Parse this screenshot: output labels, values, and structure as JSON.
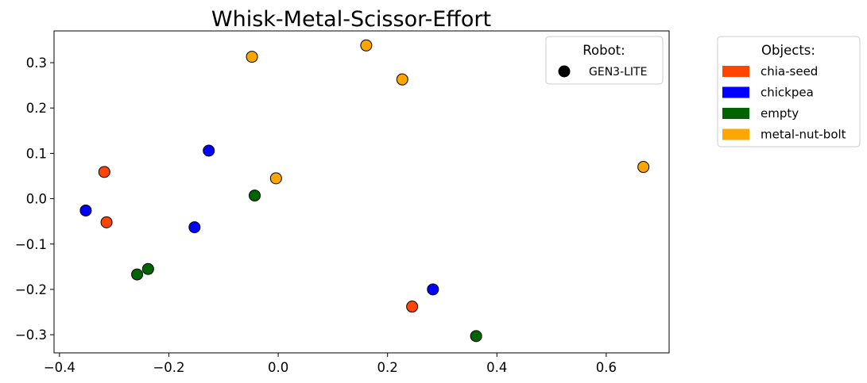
{
  "chart_data": {
    "type": "scatter",
    "title": "Whisk-Metal-Scissor-Effort",
    "xlabel": "",
    "ylabel": "",
    "xlim": [
      -0.41,
      0.715
    ],
    "ylim": [
      -0.34,
      0.37
    ],
    "x_ticks": [
      -0.4,
      -0.2,
      0.0,
      0.2,
      0.4,
      0.6
    ],
    "x_tick_labels": [
      "−0.4",
      "−0.2",
      "0.0",
      "0.2",
      "0.4",
      "0.6"
    ],
    "y_ticks": [
      0.3,
      0.2,
      0.1,
      0.0,
      -0.1,
      -0.2,
      -0.3
    ],
    "y_tick_labels": [
      "0.3",
      "0.2",
      "0.1",
      "0.0",
      "−0.1",
      "−0.2",
      "−0.3"
    ],
    "grid": false,
    "series": [
      {
        "name": "chia-seed",
        "color": "#FF4500",
        "points": [
          {
            "x": -0.318,
            "y": 0.059
          },
          {
            "x": -0.314,
            "y": -0.052
          },
          {
            "x": 0.245,
            "y": -0.238
          }
        ]
      },
      {
        "name": "chickpea",
        "color": "#0000FF",
        "points": [
          {
            "x": -0.352,
            "y": -0.026
          },
          {
            "x": -0.127,
            "y": 0.106
          },
          {
            "x": -0.153,
            "y": -0.063
          },
          {
            "x": 0.283,
            "y": -0.2
          }
        ]
      },
      {
        "name": "empty",
        "color": "#006400",
        "points": [
          {
            "x": -0.043,
            "y": 0.007
          },
          {
            "x": -0.258,
            "y": -0.167
          },
          {
            "x": -0.238,
            "y": -0.155
          },
          {
            "x": 0.362,
            "y": -0.303
          }
        ]
      },
      {
        "name": "metal-nut-bolt",
        "color": "#FFA500",
        "points": [
          {
            "x": -0.048,
            "y": 0.313
          },
          {
            "x": 0.161,
            "y": 0.338
          },
          {
            "x": 0.227,
            "y": 0.263
          },
          {
            "x": -0.004,
            "y": 0.045
          },
          {
            "x": 0.668,
            "y": 0.07
          }
        ]
      }
    ],
    "legends": {
      "robot": {
        "title": "Robot:",
        "placement": "upper-right-inside",
        "entries": [
          {
            "label": "GEN3-LITE",
            "marker": "circle",
            "color": "#000000"
          }
        ]
      },
      "objects": {
        "title": "Objects:",
        "placement": "outside-right",
        "entries": [
          {
            "label": "chia-seed",
            "color": "#FF4500"
          },
          {
            "label": "chickpea",
            "color": "#0000FF"
          },
          {
            "label": "empty",
            "color": "#006400"
          },
          {
            "label": "metal-nut-bolt",
            "color": "#FFA500"
          }
        ]
      }
    }
  }
}
